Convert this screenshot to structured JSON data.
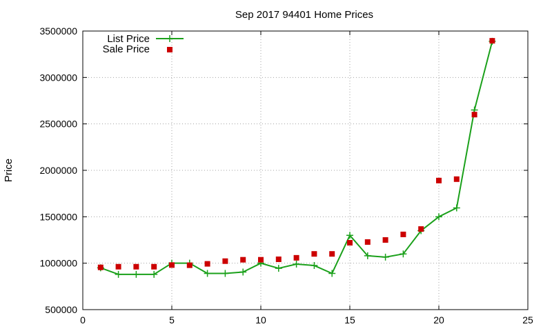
{
  "chart_data": {
    "type": "line",
    "title": "Sep 2017 94401 Home Prices",
    "xlabel": "",
    "ylabel": "Price",
    "xlim": [
      0,
      25
    ],
    "ylim": [
      500000,
      3500000
    ],
    "xticks": [
      0,
      5,
      10,
      15,
      20,
      25
    ],
    "yticks": [
      500000,
      1000000,
      1500000,
      2000000,
      2500000,
      3000000,
      3500000
    ],
    "grid": true,
    "legend": "top-left",
    "series": [
      {
        "name": "List Price",
        "style": "line-plus",
        "color": "#1aa01a",
        "x": [
          1,
          2,
          3,
          4,
          5,
          6,
          7,
          8,
          9,
          10,
          11,
          12,
          13,
          14,
          15,
          16,
          17,
          18,
          19,
          20,
          21,
          22,
          23
        ],
        "y": [
          950000,
          880000,
          880000,
          880000,
          1000000,
          1000000,
          890000,
          890000,
          905000,
          1000000,
          945000,
          990000,
          975000,
          890000,
          1300000,
          1080000,
          1065000,
          1100000,
          1350000,
          1500000,
          1595000,
          2650000,
          3390000
        ]
      },
      {
        "name": "Sale Price",
        "style": "square",
        "color": "#cc0000",
        "x": [
          1,
          2,
          3,
          4,
          5,
          6,
          7,
          8,
          9,
          10,
          11,
          12,
          13,
          14,
          15,
          16,
          17,
          18,
          19,
          20,
          21,
          22,
          23
        ],
        "y": [
          955000,
          962000,
          962000,
          962000,
          980000,
          978000,
          993000,
          1022000,
          1037000,
          1037000,
          1042000,
          1058000,
          1100000,
          1100000,
          1220000,
          1228000,
          1250000,
          1310000,
          1368000,
          1890000,
          1905000,
          2600000,
          3395000
        ]
      }
    ]
  }
}
